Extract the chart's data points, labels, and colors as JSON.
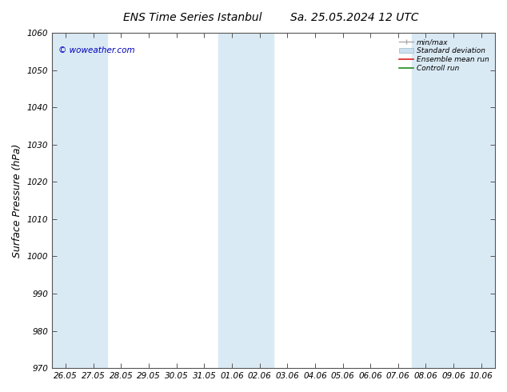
{
  "title": "ENS Time Series Istanbul",
  "title2": "Sa. 25.05.2024 12 UTC",
  "ylabel": "Surface Pressure (hPa)",
  "ylim": [
    970,
    1060
  ],
  "yticks": [
    970,
    980,
    990,
    1000,
    1010,
    1020,
    1030,
    1040,
    1050,
    1060
  ],
  "xlabels": [
    "26.05",
    "27.05",
    "28.05",
    "29.05",
    "30.05",
    "31.05",
    "01.06",
    "02.06",
    "03.06",
    "04.06",
    "05.06",
    "06.06",
    "07.06",
    "08.06",
    "09.06",
    "10.06"
  ],
  "background_color": "#ffffff",
  "plot_bg_color": "#ffffff",
  "band_color": "#daeaf5",
  "band_indices": [
    0,
    1,
    6,
    7,
    13,
    14,
    15
  ],
  "copyright_text": "© woweather.com",
  "copyright_color": "#0000bb",
  "legend_items": [
    "min/max",
    "Standard deviation",
    "Ensemble mean run",
    "Controll run"
  ],
  "title_fontsize": 10,
  "tick_fontsize": 7.5,
  "ylabel_fontsize": 9
}
